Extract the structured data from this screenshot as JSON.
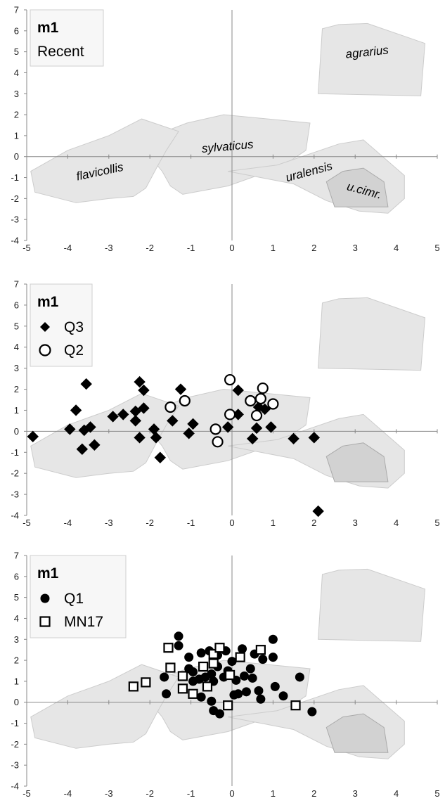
{
  "chart_data": [
    {
      "type": "scatter",
      "xlim": [
        -5,
        5
      ],
      "ylim": [
        -4,
        7
      ],
      "x_ticks": [
        "-5",
        "-4",
        "-3",
        "-2",
        "-1",
        "0",
        "1",
        "2",
        "3",
        "4",
        "5"
      ],
      "y_ticks": [
        "-4",
        "-3",
        "-2",
        "-1",
        "0",
        "1",
        "2",
        "3",
        "4",
        "5",
        "6",
        "7"
      ],
      "grid": false,
      "legend": {
        "position": "top-left",
        "title": "m1",
        "entries": [
          "Recent"
        ]
      },
      "region_labels": [
        "agrarius",
        "sylvaticus",
        "flavicollis",
        "uralensis",
        "u.cimr."
      ],
      "series": []
    },
    {
      "type": "scatter",
      "xlim": [
        -5,
        5
      ],
      "ylim": [
        -4,
        7
      ],
      "x_ticks": [
        "-5",
        "-4",
        "-3",
        "-2",
        "-1",
        "0",
        "1",
        "2",
        "3",
        "4",
        "5"
      ],
      "y_ticks": [
        "-4",
        "-3",
        "-2",
        "-1",
        "0",
        "1",
        "2",
        "3",
        "4",
        "5",
        "6",
        "7"
      ],
      "grid": false,
      "legend": {
        "position": "top-left",
        "title": "m1",
        "entries": [
          "Q3",
          "Q2"
        ]
      },
      "series": [
        {
          "name": "Q3",
          "marker": "diamond-filled",
          "points": [
            [
              -4.85,
              -0.25
            ],
            [
              -3.95,
              0.1
            ],
            [
              -3.8,
              1.0
            ],
            [
              -3.55,
              2.25
            ],
            [
              -3.65,
              -0.85
            ],
            [
              -3.6,
              0.05
            ],
            [
              -3.45,
              0.2
            ],
            [
              -3.35,
              -0.65
            ],
            [
              -2.9,
              0.7
            ],
            [
              -2.65,
              0.8
            ],
            [
              -2.35,
              0.95
            ],
            [
              -2.35,
              0.5
            ],
            [
              -2.25,
              2.35
            ],
            [
              -2.15,
              1.95
            ],
            [
              -2.25,
              -0.3
            ],
            [
              -2.15,
              1.1
            ],
            [
              -1.9,
              0.1
            ],
            [
              -1.85,
              -0.3
            ],
            [
              -1.75,
              -1.25
            ],
            [
              -1.45,
              0.5
            ],
            [
              -1.25,
              2.0
            ],
            [
              -1.05,
              -0.1
            ],
            [
              -0.95,
              0.35
            ],
            [
              -0.1,
              0.2
            ],
            [
              0.15,
              1.95
            ],
            [
              0.15,
              0.8
            ],
            [
              0.5,
              -0.35
            ],
            [
              0.6,
              0.15
            ],
            [
              0.65,
              1.15
            ],
            [
              0.8,
              1.05
            ],
            [
              0.95,
              0.2
            ],
            [
              1.5,
              -0.35
            ],
            [
              2.0,
              -0.3
            ],
            [
              2.1,
              -3.8
            ]
          ]
        },
        {
          "name": "Q2",
          "marker": "circle-open",
          "points": [
            [
              -1.5,
              1.15
            ],
            [
              -1.15,
              1.45
            ],
            [
              -0.4,
              0.1
            ],
            [
              -0.35,
              -0.5
            ],
            [
              -0.05,
              2.45
            ],
            [
              -0.05,
              0.8
            ],
            [
              0.45,
              1.45
            ],
            [
              0.6,
              0.75
            ],
            [
              0.7,
              1.55
            ],
            [
              0.75,
              2.05
            ],
            [
              1.0,
              1.3
            ]
          ]
        }
      ]
    },
    {
      "type": "scatter",
      "xlim": [
        -5,
        5
      ],
      "ylim": [
        -4,
        7
      ],
      "x_ticks": [
        "-5",
        "-4",
        "-3",
        "-2",
        "-1",
        "0",
        "1",
        "2",
        "3",
        "4",
        "5"
      ],
      "y_ticks": [
        "-4",
        "-3",
        "-2",
        "-1",
        "0",
        "1",
        "2",
        "3",
        "4",
        "5",
        "6",
        "7"
      ],
      "grid": false,
      "legend": {
        "position": "top-left",
        "title": "m1",
        "entries": [
          "Q1",
          "MN17"
        ]
      },
      "series": [
        {
          "name": "Q1",
          "marker": "circle-filled",
          "points": [
            [
              -1.65,
              1.2
            ],
            [
              -1.6,
              0.4
            ],
            [
              -1.3,
              3.15
            ],
            [
              -1.3,
              2.7
            ],
            [
              -1.05,
              1.6
            ],
            [
              -1.05,
              2.15
            ],
            [
              -0.95,
              1.45
            ],
            [
              -0.95,
              1.0
            ],
            [
              -0.8,
              1.1
            ],
            [
              -0.75,
              2.35
            ],
            [
              -0.75,
              0.25
            ],
            [
              -0.65,
              1.2
            ],
            [
              -0.55,
              2.45
            ],
            [
              -0.5,
              1.35
            ],
            [
              -0.5,
              0.05
            ],
            [
              -0.45,
              1.0
            ],
            [
              -0.45,
              -0.4
            ],
            [
              -0.35,
              2.25
            ],
            [
              -0.35,
              1.7
            ],
            [
              -0.3,
              -0.55
            ],
            [
              -0.2,
              1.2
            ],
            [
              -0.15,
              2.45
            ],
            [
              -0.1,
              1.5
            ],
            [
              0.0,
              1.95
            ],
            [
              0.05,
              0.35
            ],
            [
              0.1,
              1.05
            ],
            [
              0.15,
              0.4
            ],
            [
              0.2,
              2.15
            ],
            [
              0.25,
              2.55
            ],
            [
              0.3,
              1.25
            ],
            [
              0.35,
              0.5
            ],
            [
              0.45,
              1.6
            ],
            [
              0.5,
              1.15
            ],
            [
              0.55,
              2.3
            ],
            [
              0.65,
              0.55
            ],
            [
              0.7,
              0.15
            ],
            [
              0.75,
              2.05
            ],
            [
              1.0,
              3.0
            ],
            [
              1.0,
              2.15
            ],
            [
              1.05,
              0.75
            ],
            [
              1.25,
              0.3
            ],
            [
              1.65,
              1.2
            ],
            [
              1.95,
              -0.45
            ]
          ]
        },
        {
          "name": "MN17",
          "marker": "square-open",
          "points": [
            [
              -2.4,
              0.75
            ],
            [
              -2.1,
              0.95
            ],
            [
              -1.55,
              2.6
            ],
            [
              -1.5,
              1.65
            ],
            [
              -1.2,
              1.25
            ],
            [
              -1.2,
              0.65
            ],
            [
              -0.95,
              0.4
            ],
            [
              -0.7,
              1.7
            ],
            [
              -0.6,
              0.75
            ],
            [
              -0.45,
              2.3
            ],
            [
              -0.45,
              1.85
            ],
            [
              -0.3,
              2.6
            ],
            [
              -0.1,
              -0.15
            ],
            [
              -0.05,
              1.3
            ],
            [
              0.2,
              2.15
            ],
            [
              0.7,
              2.5
            ],
            [
              1.55,
              -0.15
            ]
          ]
        }
      ]
    }
  ]
}
